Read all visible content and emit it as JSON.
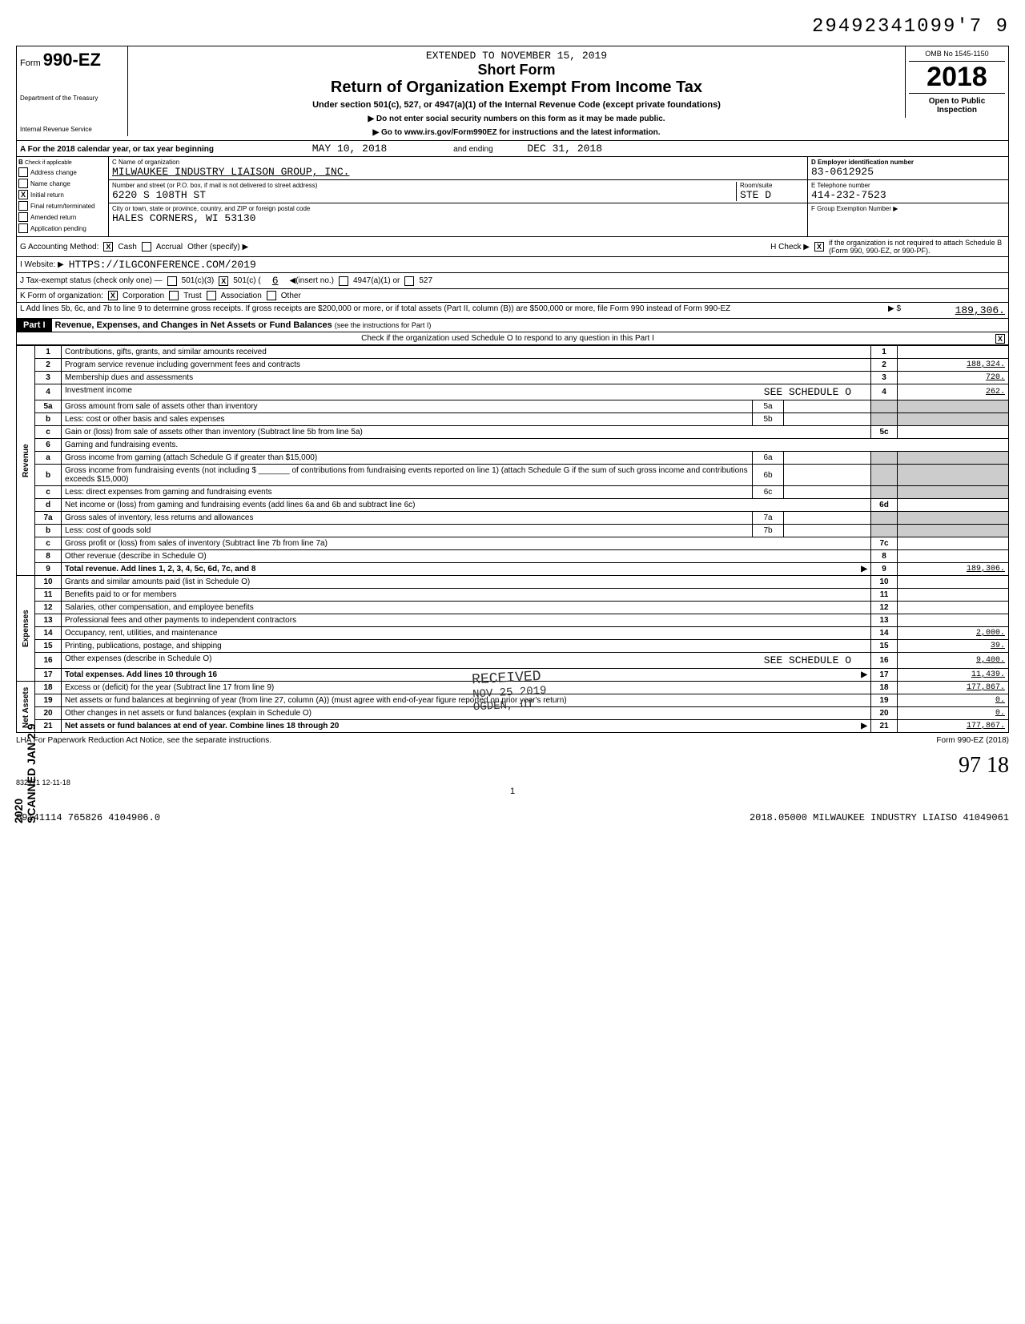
{
  "doc_id": "29492341099'7 9",
  "extended": "EXTENDED TO NOVEMBER 15, 2019",
  "form": {
    "prefix": "Form",
    "number": "990-EZ",
    "short": "Short Form",
    "title": "Return of Organization Exempt From Income Tax",
    "subtitle": "Under section 501(c), 527, or 4947(a)(1) of the Internal Revenue Code (except private foundations)",
    "line1": "▶ Do not enter social security numbers on this form as it may be made public.",
    "line2": "▶ Go to www.irs.gov/Form990EZ for instructions and the latest information.",
    "dept": "Department of the Treasury",
    "irs": "Internal Revenue Service"
  },
  "yearbox": {
    "omb": "OMB No 1545-1150",
    "year": "2018",
    "open": "Open to Public",
    "insp": "Inspection"
  },
  "row_a": {
    "label": "A  For the 2018 calendar year, or tax year beginning",
    "begin": "MAY 10, 2018",
    "mid": "and ending",
    "end": "DEC 31, 2018"
  },
  "col_b": {
    "header": "B",
    "sub": "Check if applicable",
    "items": [
      "Address change",
      "Name change",
      "Initial return",
      "Final return/terminated",
      "Amended return",
      "Application pending"
    ],
    "checked_idx": 2
  },
  "col_c": {
    "name_label": "C Name of organization",
    "name": "MILWAUKEE INDUSTRY LIAISON GROUP, INC.",
    "addr_label": "Number and street (or P.O. box, if mail is not delivered to street address)",
    "room_label": "Room/suite",
    "addr": "6220 S 108TH ST",
    "room": "STE D",
    "city_label": "City or town, state or province, country, and ZIP or foreign postal code",
    "city": "HALES CORNERS, WI  53130"
  },
  "col_de": {
    "d_label": "D Employer identification number",
    "d_val": "83-0612925",
    "e_label": "E  Telephone number",
    "e_val": "414-232-7523",
    "f_label": "F  Group Exemption Number ▶"
  },
  "line_g": {
    "label": "G  Accounting Method:",
    "cash": "Cash",
    "accrual": "Accrual",
    "other": "Other (specify) ▶",
    "h": "H Check ▶",
    "h_text": "if the organization is not required to attach Schedule B (Form 990, 990-EZ, or 990-PF)."
  },
  "line_i": {
    "label": "I   Website: ▶",
    "val": "HTTPS://ILGCONFERENCE.COM/2019"
  },
  "line_j": {
    "label": "J  Tax-exempt status (check only one) —",
    "opts": [
      "501(c)(3)",
      "501(c) (",
      "◀(insert no.)",
      "4947(a)(1) or",
      "527"
    ],
    "insert": "6"
  },
  "line_k": {
    "label": "K  Form of organization:",
    "opts": [
      "Corporation",
      "Trust",
      "Association",
      "Other"
    ]
  },
  "line_l": {
    "text": "L  Add lines 5b, 6c, and 7b to line 9 to determine gross receipts. If gross receipts are $200,000 or more, or if total assets (Part II, column (B)) are $500,000 or more, file Form 990 instead of Form 990-EZ",
    "arrow": "▶  $",
    "val": "189,306."
  },
  "part1": {
    "label": "Part I",
    "title": "Revenue, Expenses, and Changes in Net Assets or Fund Balances",
    "sub": "(see the instructions for Part I)",
    "check_line": "Check if the organization used Schedule O to respond to any question in this Part I",
    "checked": "X"
  },
  "sides": {
    "rev": "Revenue",
    "exp": "Expenses",
    "net": "Net Assets"
  },
  "lines": [
    {
      "n": "1",
      "t": "Contributions, gifts, grants, and similar amounts received",
      "v": ""
    },
    {
      "n": "2",
      "t": "Program service revenue including government fees and contracts",
      "v": "188,324."
    },
    {
      "n": "3",
      "t": "Membership dues and assessments",
      "v": "720."
    },
    {
      "n": "4",
      "t": "Investment income",
      "extra": "SEE SCHEDULE O",
      "v": "262."
    },
    {
      "n": "5a",
      "t": "Gross amount from sale of assets other than inventory",
      "inner": "5a"
    },
    {
      "n": "b",
      "t": "Less: cost or other basis and sales expenses",
      "inner": "5b"
    },
    {
      "n": "c",
      "t": "Gain or (loss) from sale of assets other than inventory (Subtract line 5b from line 5a)",
      "v": "",
      "rn": "5c"
    },
    {
      "n": "6",
      "t": "Gaming and fundraising events."
    },
    {
      "n": "a",
      "t": "Gross income from gaming (attach Schedule G if greater than $15,000)",
      "inner": "6a"
    },
    {
      "n": "b",
      "t": "Gross income from fundraising events (not including $ _______ of contributions from fundraising events reported on line 1) (attach Schedule G if the sum of such gross income and contributions exceeds $15,000)",
      "inner": "6b"
    },
    {
      "n": "c",
      "t": "Less: direct expenses from gaming and fundraising events",
      "inner": "6c"
    },
    {
      "n": "d",
      "t": "Net income or (loss) from gaming and fundraising events (add lines 6a and 6b and subtract line 6c)",
      "v": "",
      "rn": "6d"
    },
    {
      "n": "7a",
      "t": "Gross sales of inventory, less returns and allowances",
      "inner": "7a"
    },
    {
      "n": "b",
      "t": "Less: cost of goods sold",
      "inner": "7b"
    },
    {
      "n": "c",
      "t": "Gross profit or (loss) from sales of inventory (Subtract line 7b from line 7a)",
      "v": "",
      "rn": "7c"
    },
    {
      "n": "8",
      "t": "Other revenue (describe in Schedule O)",
      "v": "",
      "rn": "8"
    },
    {
      "n": "9",
      "t": "Total revenue. Add lines 1, 2, 3, 4, 5c, 6d, 7c, and 8",
      "bold": true,
      "arrow": "▶",
      "v": "189,306.",
      "rn": "9"
    },
    {
      "n": "10",
      "t": "Grants and similar amounts paid (list in Schedule O)",
      "v": "",
      "rn": "10"
    },
    {
      "n": "11",
      "t": "Benefits paid to or for members",
      "v": "",
      "rn": "11"
    },
    {
      "n": "12",
      "t": "Salaries, other compensation, and employee benefits",
      "v": "",
      "rn": "12"
    },
    {
      "n": "13",
      "t": "Professional fees and other payments to independent contractors",
      "v": "",
      "rn": "13"
    },
    {
      "n": "14",
      "t": "Occupancy, rent, utilities, and maintenance",
      "v": "2,000.",
      "rn": "14"
    },
    {
      "n": "15",
      "t": "Printing, publications, postage, and shipping",
      "v": "39.",
      "rn": "15"
    },
    {
      "n": "16",
      "t": "Other expenses (describe in Schedule O)",
      "extra": "SEE SCHEDULE O",
      "v": "9,400.",
      "rn": "16"
    },
    {
      "n": "17",
      "t": "Total expenses. Add lines 10 through 16",
      "bold": true,
      "arrow": "▶",
      "v": "11,439.",
      "rn": "17"
    },
    {
      "n": "18",
      "t": "Excess or (deficit) for the year (Subtract line 17 from line 9)",
      "v": "177,867.",
      "rn": "18"
    },
    {
      "n": "19",
      "t": "Net assets or fund balances at beginning of year (from line 27, column (A)) (must agree with end-of-year figure reported on prior year's return)",
      "v": "0.",
      "rn": "19"
    },
    {
      "n": "20",
      "t": "Other changes in net assets or fund balances (explain in Schedule O)",
      "v": "0.",
      "rn": "20"
    },
    {
      "n": "21",
      "t": "Net assets or fund balances at end of year. Combine lines 18 through 20",
      "bold": true,
      "arrow": "▶",
      "v": "177,867.",
      "rn": "21"
    }
  ],
  "stamp": {
    "l1": "RECEIVED",
    "l2": "NOV 25 2019",
    "l3": "OGDEN, UT"
  },
  "scanned": "SCANNED JAN 2 9 2020",
  "footer": {
    "lha": "LHA  For Paperwork Reduction Act Notice, see the separate instructions.",
    "form": "Form 990-EZ (2018)",
    "code": "832171 12-11-18",
    "sig": "97   18",
    "page": "1",
    "bl_left": "09141114 765826 4104906.0",
    "bl_right": "2018.05000 MILWAUKEE INDUSTRY LIAISO 41049061"
  }
}
